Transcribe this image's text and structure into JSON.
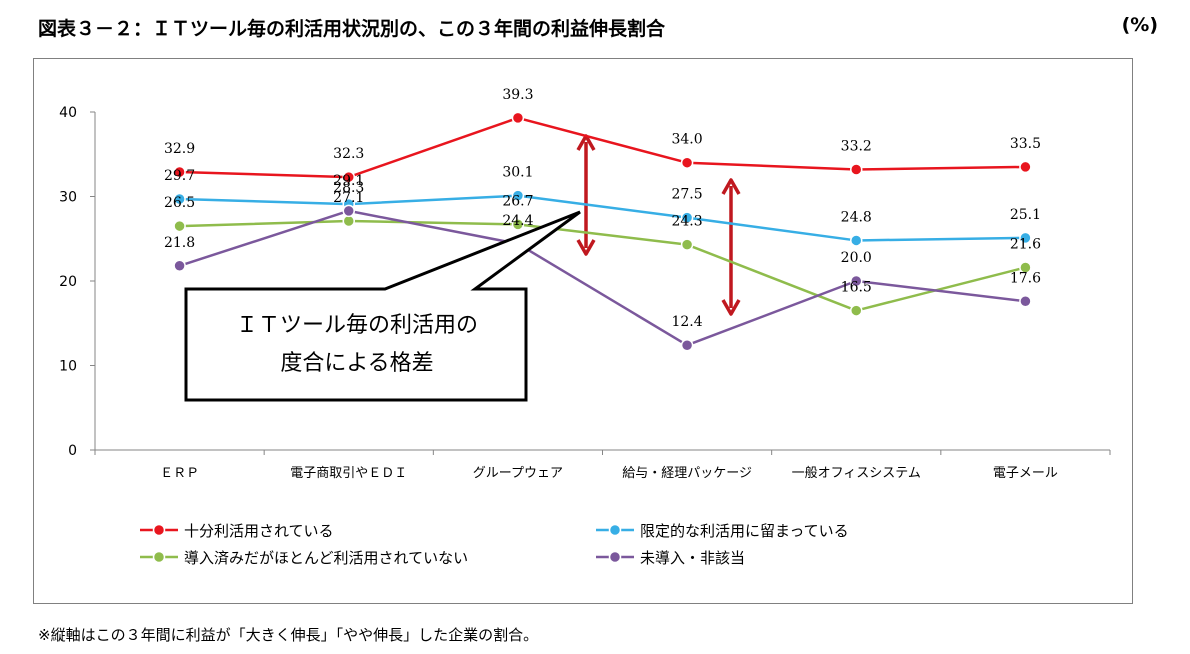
{
  "header": {
    "title": "図表３－２：ＩＴツール毎の利活用状況別の、この３年間の利益伸長割合",
    "unit": "(%)"
  },
  "footnote": "※縦軸はこの３年間に利益が「大きく伸長」「やや伸長」した企業の割合。",
  "callout": {
    "line1": "ＩＴツール毎の利活用の",
    "line2": "度合による格差"
  },
  "chart_data": {
    "type": "line",
    "title": "図表３－２：ＩＴツール毎の利活用状況別の、この３年間の利益伸長割合",
    "ylabel": "(%)",
    "xlabel": "",
    "ylim": [
      0,
      40
    ],
    "yticks": [
      "0",
      "10",
      "20",
      "30",
      "40"
    ],
    "grid": false,
    "legend_position": "bottom",
    "categories": [
      "ＥＲＰ",
      "電子商取引やＥＤＩ",
      "グループウェア",
      "給与・経理パッケージ",
      "一般オフィスシステム",
      "電子メール"
    ],
    "series": [
      {
        "name": "十分利活用されている",
        "color": "#e8151e",
        "values": [
          32.9,
          32.3,
          39.3,
          34.0,
          33.2,
          33.5
        ],
        "labels": [
          "32.9",
          "32.3",
          "39.3",
          "34.0",
          "33.2",
          "33.5"
        ]
      },
      {
        "name": "限定的な利活用に留まっている",
        "color": "#37aee5",
        "values": [
          29.7,
          29.1,
          30.1,
          27.5,
          24.8,
          25.1
        ],
        "labels": [
          "29.7",
          "29.1",
          "30.1",
          "27.5",
          "24.8",
          "25.1"
        ]
      },
      {
        "name": "導入済みだがほとんど利活用されていない",
        "color": "#8fbc4c",
        "values": [
          26.5,
          27.1,
          26.7,
          24.3,
          16.5,
          21.6
        ],
        "labels": [
          "26.5",
          "27.1",
          "26.7",
          "24.3",
          "16.5",
          "21.6"
        ]
      },
      {
        "name": "未導入・非該当",
        "color": "#7b589c",
        "values": [
          21.8,
          28.3,
          24.4,
          12.4,
          20.0,
          17.6
        ],
        "labels": [
          "21.8",
          "28.3",
          "24.4",
          "12.4",
          "20.0",
          "17.6"
        ]
      }
    ],
    "arrow_color": "#c0181f"
  }
}
